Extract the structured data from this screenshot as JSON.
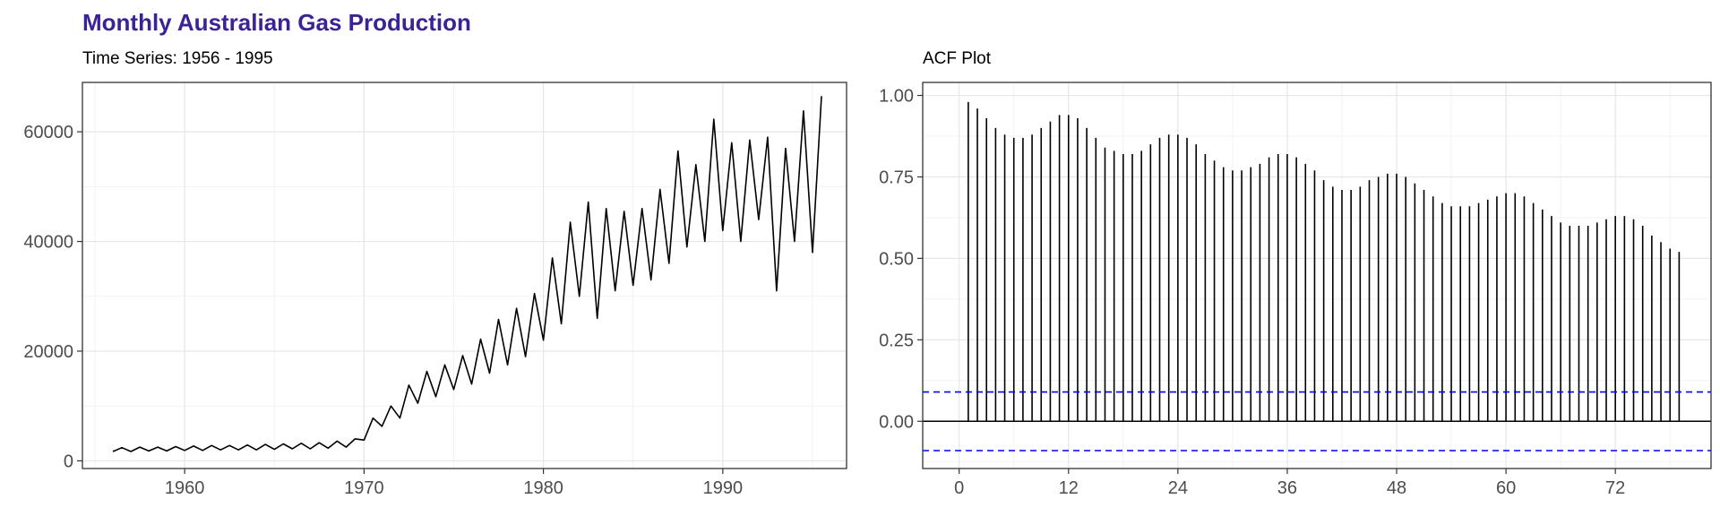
{
  "title": "Monthly Australian Gas Production",
  "chart_data": [
    {
      "type": "line",
      "subtitle": "Time Series: 1956 - 1995",
      "xlabel": "",
      "ylabel": "",
      "xlim": [
        1954.3,
        1996.9
      ],
      "ylim": [
        -1400,
        69000
      ],
      "x_ticks": [
        1960,
        1970,
        1980,
        1990
      ],
      "x_tick_labels": [
        "1960",
        "1970",
        "1980",
        "1990"
      ],
      "y_ticks": [
        0,
        20000,
        40000,
        60000
      ],
      "y_tick_labels": [
        "0",
        "20000",
        "40000",
        "60000"
      ],
      "grid": true,
      "line_color": "#000000",
      "series": [
        {
          "x": [
            1956.0,
            1956.5,
            1957.0,
            1957.5,
            1958.0,
            1958.5,
            1959.0,
            1959.5,
            1960.0,
            1960.5,
            1961.0,
            1961.5,
            1962.0,
            1962.5,
            1963.0,
            1963.5,
            1964.0,
            1964.5,
            1965.0,
            1965.5,
            1966.0,
            1966.5,
            1967.0,
            1967.5,
            1968.0,
            1968.5,
            1969.0,
            1969.5,
            1970.0,
            1970.5,
            1971.0,
            1971.5,
            1972.0,
            1972.5,
            1973.0,
            1973.5,
            1974.0,
            1974.5,
            1975.0,
            1975.5,
            1976.0,
            1976.5,
            1977.0,
            1977.5,
            1978.0,
            1978.5,
            1979.0,
            1979.5,
            1980.0,
            1980.5,
            1981.0,
            1981.5,
            1982.0,
            1982.5,
            1983.0,
            1983.5,
            1984.0,
            1984.5,
            1985.0,
            1985.5,
            1986.0,
            1986.5,
            1987.0,
            1987.5,
            1988.0,
            1988.5,
            1989.0,
            1989.5,
            1990.0,
            1990.5,
            1991.0,
            1991.5,
            1992.0,
            1992.5,
            1993.0,
            1993.5,
            1994.0,
            1994.5,
            1995.0,
            1995.5
          ],
          "y": [
            1700,
            2400,
            1700,
            2500,
            1800,
            2500,
            1800,
            2600,
            1900,
            2700,
            1900,
            2800,
            2000,
            2800,
            2000,
            2900,
            2000,
            3000,
            2100,
            3100,
            2200,
            3200,
            2200,
            3300,
            2300,
            3600,
            2500,
            4000,
            3800,
            7800,
            6300,
            10000,
            7800,
            13800,
            10500,
            16300,
            11700,
            17500,
            13000,
            19200,
            14000,
            22200,
            16000,
            25800,
            17500,
            27800,
            19000,
            30500,
            22000,
            37000,
            25000,
            43500,
            30000,
            47200,
            26000,
            46000,
            31000,
            45500,
            32000,
            46000,
            33000,
            49500,
            36000,
            56500,
            39000,
            54000,
            40000,
            62300,
            42000,
            58000,
            40000,
            58500,
            44000,
            59000,
            31000,
            57000,
            40000,
            63800,
            38000,
            66500
          ]
        }
      ]
    },
    {
      "type": "bar",
      "subtitle": "ACF Plot",
      "xlabel": "",
      "ylabel": "",
      "xlim": [
        -4.0,
        82.5
      ],
      "ylim": [
        -0.145,
        1.04
      ],
      "x_ticks": [
        0,
        12,
        24,
        36,
        48,
        60,
        72
      ],
      "x_tick_labels": [
        "0",
        "12",
        "24",
        "36",
        "48",
        "60",
        "72"
      ],
      "y_ticks": [
        0.0,
        0.25,
        0.5,
        0.75,
        1.0
      ],
      "y_tick_labels": [
        "0.00",
        "0.25",
        "0.50",
        "0.75",
        "1.00"
      ],
      "grid": true,
      "lags": [
        1,
        2,
        3,
        4,
        5,
        6,
        7,
        8,
        9,
        10,
        11,
        12,
        13,
        14,
        15,
        16,
        17,
        18,
        19,
        20,
        21,
        22,
        23,
        24,
        25,
        26,
        27,
        28,
        29,
        30,
        31,
        32,
        33,
        34,
        35,
        36,
        37,
        38,
        39,
        40,
        41,
        42,
        43,
        44,
        45,
        46,
        47,
        48,
        49,
        50,
        51,
        52,
        53,
        54,
        55,
        56,
        57,
        58,
        59,
        60,
        61,
        62,
        63,
        64,
        65,
        66,
        67,
        68,
        69,
        70,
        71,
        72,
        73,
        74,
        75,
        76,
        77,
        78,
        79
      ],
      "values": [
        0.98,
        0.96,
        0.93,
        0.9,
        0.88,
        0.87,
        0.87,
        0.88,
        0.9,
        0.92,
        0.94,
        0.94,
        0.93,
        0.9,
        0.87,
        0.84,
        0.83,
        0.82,
        0.82,
        0.83,
        0.85,
        0.87,
        0.88,
        0.88,
        0.87,
        0.85,
        0.82,
        0.8,
        0.78,
        0.77,
        0.77,
        0.78,
        0.79,
        0.81,
        0.82,
        0.82,
        0.81,
        0.79,
        0.77,
        0.74,
        0.72,
        0.71,
        0.71,
        0.72,
        0.74,
        0.75,
        0.76,
        0.76,
        0.75,
        0.73,
        0.71,
        0.69,
        0.67,
        0.66,
        0.66,
        0.66,
        0.67,
        0.68,
        0.69,
        0.7,
        0.7,
        0.69,
        0.67,
        0.65,
        0.63,
        0.61,
        0.6,
        0.6,
        0.6,
        0.61,
        0.62,
        0.63,
        0.63,
        0.62,
        0.6,
        0.57,
        0.55,
        0.53,
        0.52
      ],
      "bar_color": "#000000",
      "confidence_bound": 0.09,
      "confidence_color": "#0000ff"
    }
  ]
}
